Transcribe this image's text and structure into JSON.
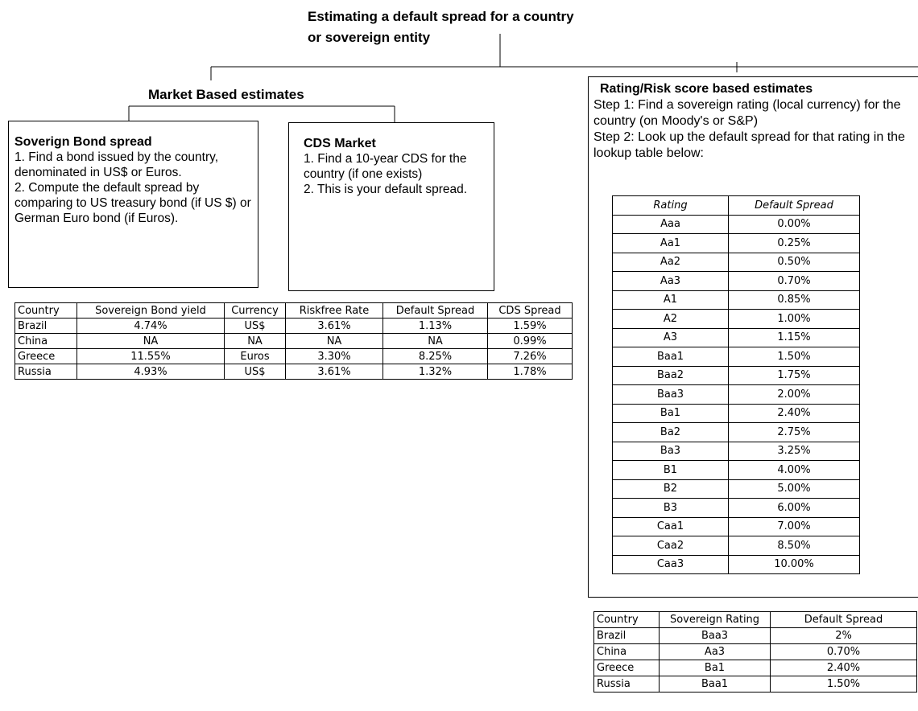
{
  "title_lines": [
    "Estimating a default spread for a country",
    "or sovereign entity"
  ],
  "market": {
    "title": "Market Based estimates"
  },
  "bond_box": {
    "title": "Soverign Bond spread",
    "lines": [
      "1. Find a bond issued by the country, denominated in US$ or Euros.",
      "2. Compute the default spread by comparing to US treasury bond (if US $) or German Euro bond (if Euros)."
    ]
  },
  "cds_box": {
    "title": "CDS Market",
    "lines": [
      "1. Find a 10-year CDS for the country (if one exists)",
      "2. This is your default spread."
    ]
  },
  "rating_box": {
    "title": "Rating/Risk score based estimates",
    "lines": [
      "Step 1: Find a sovereign rating (local currency) for the country (on Moody's or S&P)",
      "Step 2: Look up the default spread for that rating in the lookup table below:"
    ]
  },
  "market_table": {
    "header": [
      "Country",
      "Sovereign Bond yield",
      "Currency",
      "Riskfree Rate",
      "Default Spread",
      "CDS Spread"
    ],
    "rows": [
      [
        "Brazil",
        "4.74%",
        "US$",
        "3.61%",
        "1.13%",
        "1.59%"
      ],
      [
        "China",
        "NA",
        "NA",
        "NA",
        "NA",
        "0.99%"
      ],
      [
        "Greece",
        "11.55%",
        "Euros",
        "3.30%",
        "8.25%",
        "7.26%"
      ],
      [
        "Russia",
        "4.93%",
        "US$",
        "3.61%",
        "1.32%",
        "1.78%"
      ]
    ]
  },
  "rating_table": {
    "header": [
      "Rating",
      "Default Spread"
    ],
    "rows": [
      [
        "Aaa",
        "0.00%"
      ],
      [
        "Aa1",
        "0.25%"
      ],
      [
        "Aa2",
        "0.50%"
      ],
      [
        "Aa3",
        "0.70%"
      ],
      [
        "A1",
        "0.85%"
      ],
      [
        "A2",
        "1.00%"
      ],
      [
        "A3",
        "1.15%"
      ],
      [
        "Baa1",
        "1.50%"
      ],
      [
        "Baa2",
        "1.75%"
      ],
      [
        "Baa3",
        "2.00%"
      ],
      [
        "Ba1",
        "2.40%"
      ],
      [
        "Ba2",
        "2.75%"
      ],
      [
        "Ba3",
        "3.25%"
      ],
      [
        "B1",
        "4.00%"
      ],
      [
        "B2",
        "5.00%"
      ],
      [
        "B3",
        "6.00%"
      ],
      [
        "Caa1",
        "7.00%"
      ],
      [
        "Caa2",
        "8.50%"
      ],
      [
        "Caa3",
        "10.00%"
      ]
    ]
  },
  "country_rating_table": {
    "header": [
      "Country",
      "Sovereign Rating",
      "Default Spread"
    ],
    "rows": [
      [
        "Brazil",
        "Baa3",
        "2%"
      ],
      [
        "China",
        "Aa3",
        "0.70%"
      ],
      [
        "Greece",
        "Ba1",
        "2.40%"
      ],
      [
        "Russia",
        "Baa1",
        "1.50%"
      ]
    ]
  }
}
